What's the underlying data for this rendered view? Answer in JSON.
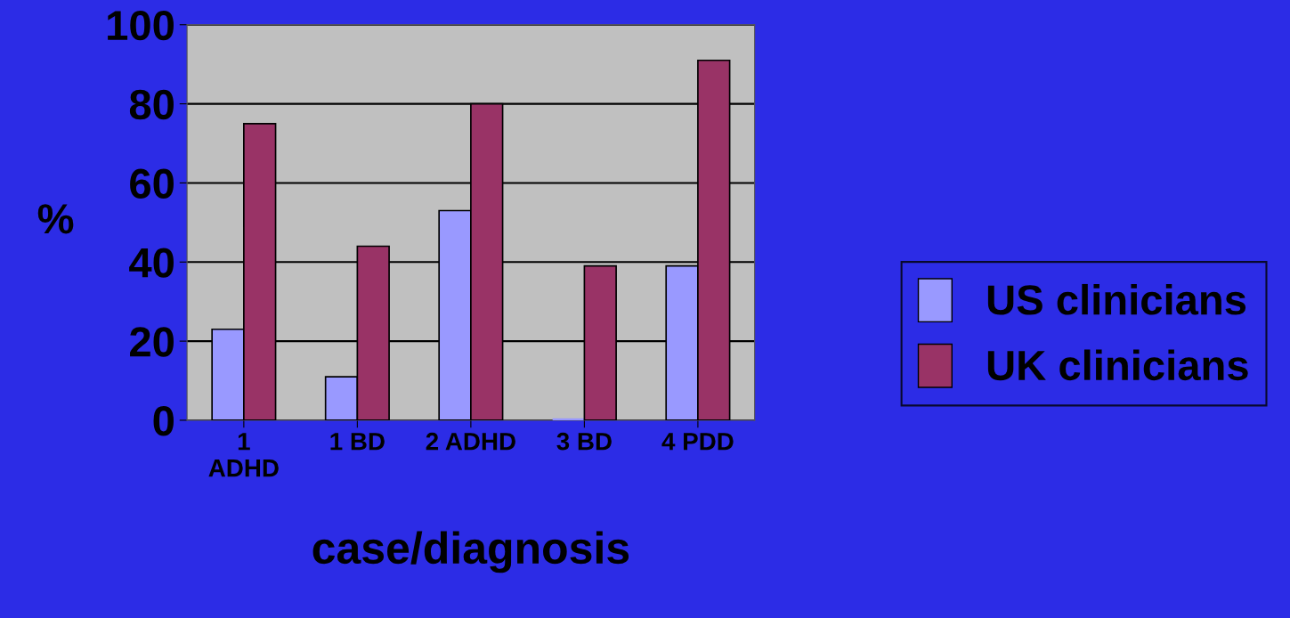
{
  "chart_data": {
    "type": "bar",
    "xlabel": "case/diagnosis",
    "ylabel": "%",
    "categories": [
      "1\nADHD",
      "1 BD",
      "2 ADHD",
      "3 BD",
      "4 PDD"
    ],
    "series": [
      {
        "name": "US clinicians",
        "color": "#9999ff",
        "values": [
          23,
          11,
          53,
          0,
          39
        ]
      },
      {
        "name": "UK clinicians",
        "color": "#993366",
        "values": [
          75,
          44,
          80,
          39,
          91
        ]
      }
    ],
    "ylim": [
      0,
      100
    ],
    "yticks": [
      0,
      20,
      40,
      60,
      80,
      100
    ],
    "grid": "y",
    "legend": "right"
  }
}
